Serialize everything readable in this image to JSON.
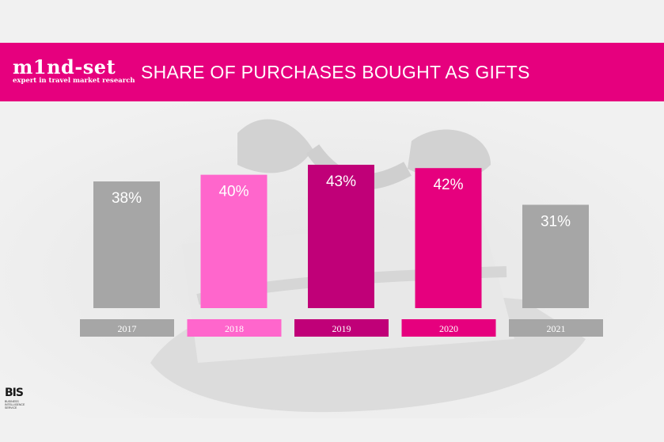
{
  "header": {
    "logo_name": "m1nd-set",
    "logo_tagline": "expert in travel market research",
    "title": "SHARE OF PURCHASES BOUGHT AS GIFTS"
  },
  "footer": {
    "bis_logo": "BIS",
    "bis_caption": "BUSINESS INTELLIGENCE SERVICE"
  },
  "colors": {
    "brand_pink": "#e6007e",
    "background": "#f1f1f1"
  },
  "chart_data": {
    "type": "bar",
    "title": "SHARE OF PURCHASES BOUGHT AS GIFTS",
    "categories": [
      "2017",
      "2018",
      "2019",
      "2020",
      "2021"
    ],
    "values": [
      38,
      40,
      43,
      42,
      31
    ],
    "value_labels": [
      "38%",
      "40%",
      "43%",
      "42%",
      "31%"
    ],
    "unit": "%",
    "bar_colors": [
      "#a6a6a6",
      "#ff66cc",
      "#c00078",
      "#e6007e",
      "#a6a6a6"
    ],
    "ylim": [
      0,
      43
    ],
    "grid": false,
    "legend": "none"
  }
}
